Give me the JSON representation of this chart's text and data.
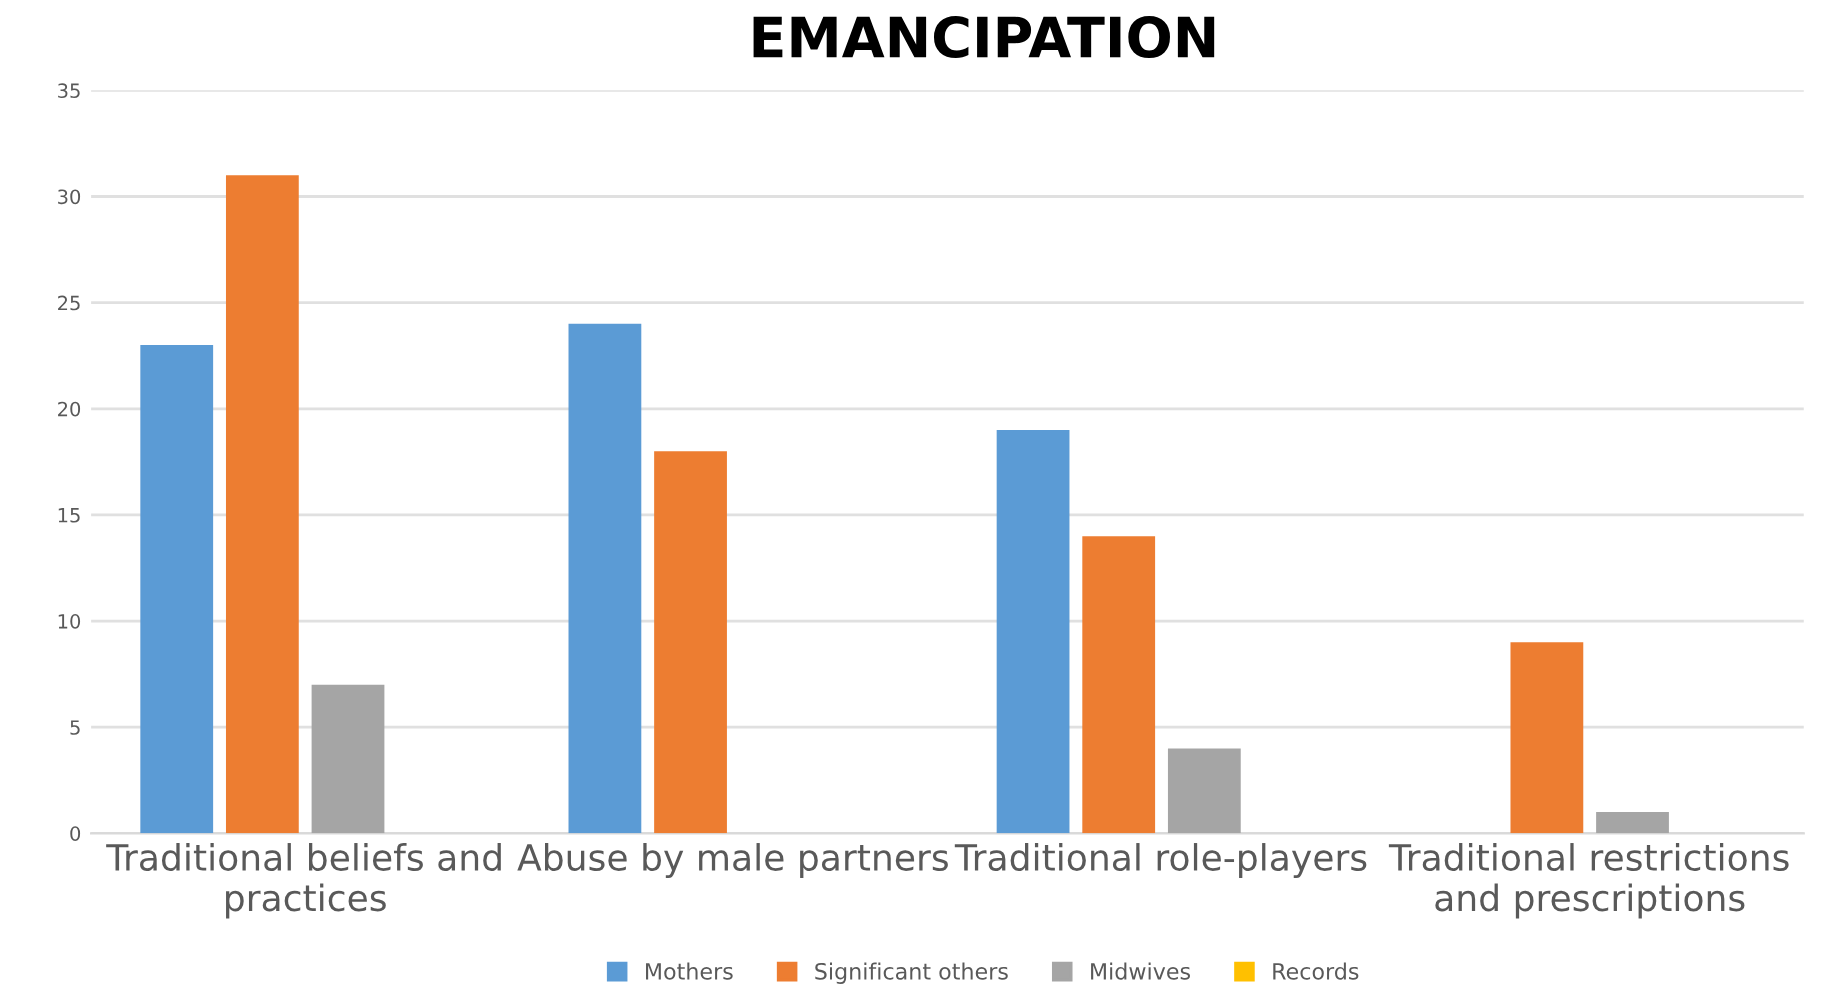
{
  "chart_data": {
    "type": "bar",
    "title": "EMANCIPATION",
    "categories": [
      "Traditional beliefs and practices",
      "Abuse by male partners",
      "Traditional role-players",
      "Traditional restrictions and prescriptions"
    ],
    "series": [
      {
        "name": "Mothers",
        "color": "#5b9bd5",
        "values": [
          23,
          24,
          19,
          0
        ]
      },
      {
        "name": "Significant others",
        "color": "#ed7d31",
        "values": [
          31,
          18,
          14,
          9
        ]
      },
      {
        "name": "Midwives",
        "color": "#a5a5a5",
        "values": [
          7,
          0,
          4,
          1
        ]
      },
      {
        "name": "Records",
        "color": "#ffc000",
        "values": [
          0,
          0,
          0,
          0
        ]
      }
    ],
    "ylim": [
      0,
      35
    ],
    "yticks": [
      0,
      5,
      10,
      15,
      20,
      25,
      30,
      35
    ],
    "grid": "y",
    "legend": "bottom"
  }
}
